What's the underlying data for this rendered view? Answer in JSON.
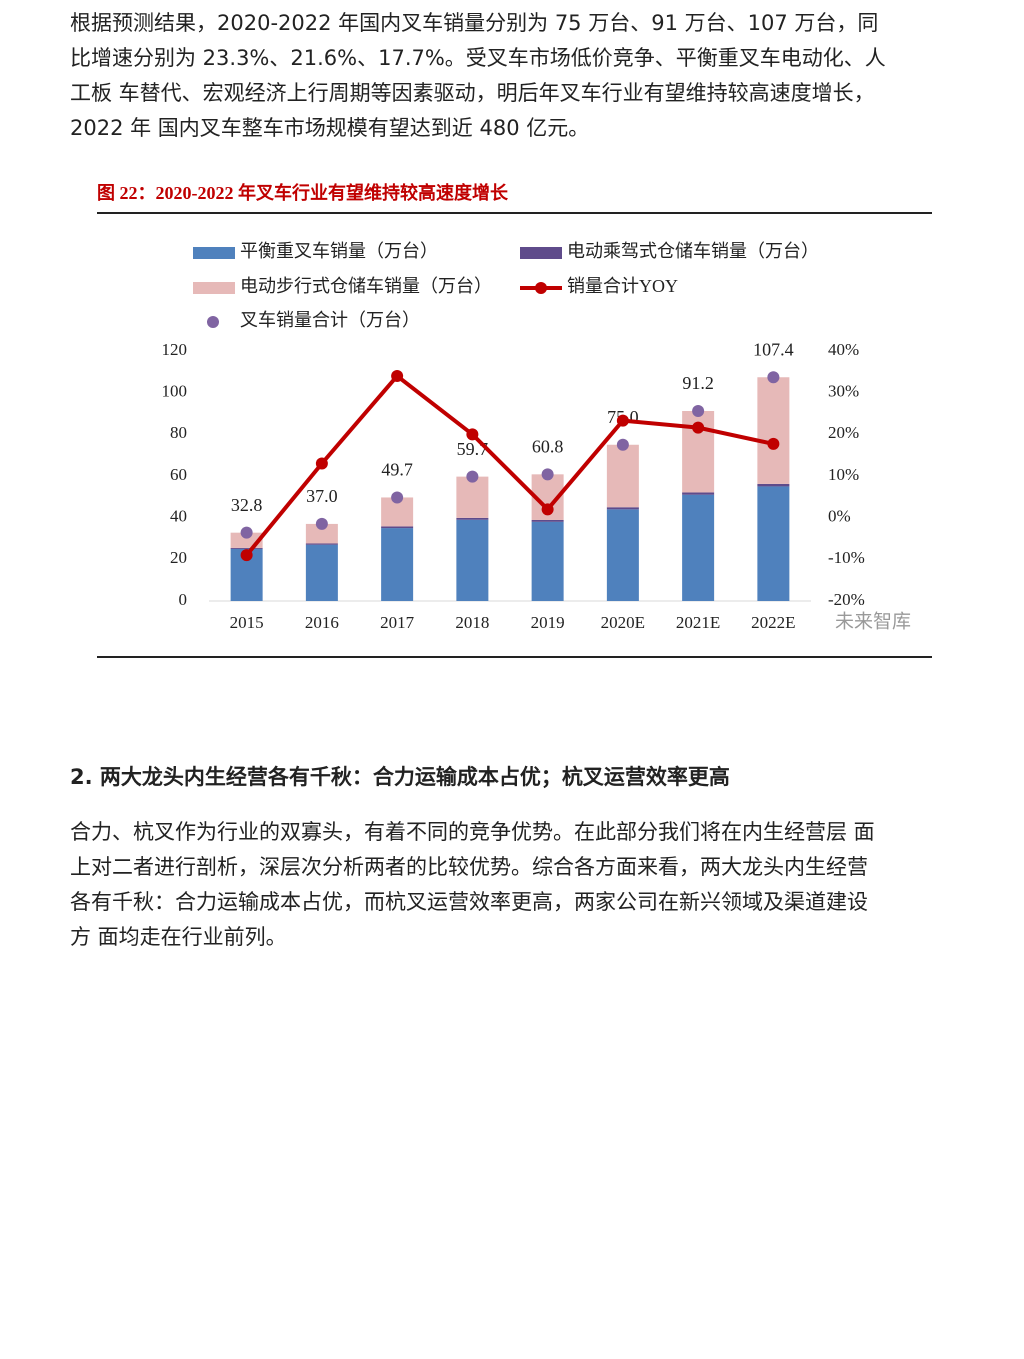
{
  "intro": {
    "lines": [
      "根据预测结果，2020-2022 年国内叉车销量分别为 75 万台、91 万台、107 万台，同",
      "比增速分别为 23.3%、21.6%、17.7%。受叉车市场低价竞争、平衡重叉车电动化、人",
      "工板 车替代、宏观经济上行周期等因素驱动，明后年叉车行业有望维持较高速度增长，",
      "2022 年 国内叉车整车市场规模有望达到近 480 亿元。"
    ]
  },
  "chart_data": {
    "type": "combo",
    "title": "图 22：2020-2022 年叉车行业有望维持较高速度增长",
    "categories": [
      "2015",
      "2016",
      "2017",
      "2018",
      "2019",
      "2020E",
      "2021E",
      "2022E"
    ],
    "series": [
      {
        "name": "平衡重叉车销量（万台）",
        "type": "bar",
        "color": "#4f81bd",
        "values": [
          25,
          27,
          35,
          39,
          38,
          44,
          51,
          55
        ]
      },
      {
        "name": "电动乘驾式仓储车销量（万台）",
        "type": "bar",
        "color": "#5f4b8b",
        "values": [
          0.5,
          0.6,
          0.8,
          0.9,
          0.9,
          1.0,
          1.1,
          1.2
        ]
      },
      {
        "name": "电动步行式仓储车销量（万台）",
        "type": "bar",
        "color": "#e6b9b8",
        "values": [
          7.3,
          9.4,
          13.9,
          19.8,
          21.9,
          30,
          39.1,
          51.2
        ]
      },
      {
        "name": "销量合计YOY",
        "type": "line",
        "axis": "y2",
        "color": "#c00000",
        "values": [
          -9,
          13,
          34,
          20,
          2,
          23.3,
          21.6,
          17.7
        ]
      },
      {
        "name": "叉车销量合计（万台）",
        "type": "scatter",
        "color": "#8064a2",
        "values": [
          32.8,
          37.0,
          49.7,
          59.7,
          60.8,
          75.0,
          91.2,
          107.4
        ],
        "value_labels": [
          "32.8",
          "37.0",
          "49.7",
          "59.7",
          "60.8",
          "75.0",
          "91.2",
          "107.4"
        ]
      }
    ],
    "ylim": [
      0,
      120
    ],
    "yticks": [
      0,
      20,
      40,
      60,
      80,
      100,
      120
    ],
    "y2lim": [
      -20,
      40
    ],
    "y2ticks": [
      {
        "value": -20,
        "label": "-20%"
      },
      {
        "value": -10,
        "label": "-10%"
      },
      {
        "value": 0,
        "label": "0%"
      },
      {
        "value": 10,
        "label": "10%"
      },
      {
        "value": 20,
        "label": "20%"
      },
      {
        "value": 30,
        "label": "30%"
      },
      {
        "value": 40,
        "label": "40%"
      }
    ],
    "stacked": true,
    "grid": false,
    "legend": "top"
  },
  "watermark": "未来智库",
  "section": {
    "heading": "2. 两大龙头内生经营各有千秋：合力运输成本占优；杭叉运营效率更高",
    "lines": [
      "合力、杭叉作为行业的双寡头，有着不同的竞争优势。在此部分我们将在内生经营层 面",
      "上对二者进行剖析，深层次分析两者的比较优势。综合各方面来看，两大龙头内生经营",
      "各有千秋：合力运输成本占优，而杭叉运营效率更高，两家公司在新兴领域及渠道建设",
      "方 面均走在行业前列。"
    ]
  }
}
